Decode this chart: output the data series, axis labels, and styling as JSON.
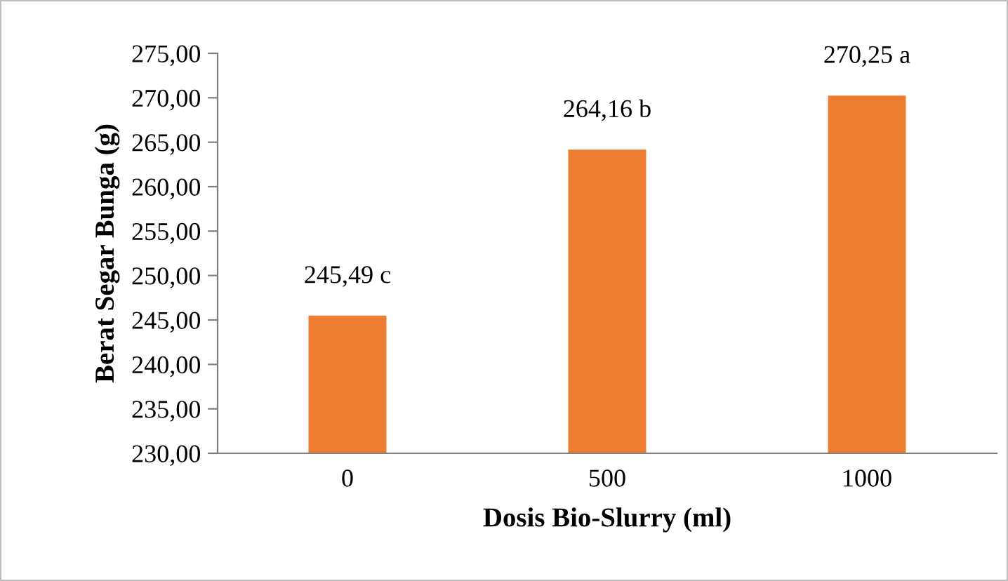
{
  "chart_data": {
    "type": "bar",
    "xlabel": "Dosis Bio-Slurry (ml)",
    "ylabel": "Berat Segar Bunga (g)",
    "categories": [
      "0",
      "500",
      "1000"
    ],
    "values": [
      245.49,
      264.16,
      270.25
    ],
    "value_labels": [
      "245,49 c",
      "264,16 b",
      "270,25 a"
    ],
    "color": "#ed7d31",
    "ylim": [
      230,
      275
    ],
    "yticks": [
      {
        "value": 230,
        "label": "230,00"
      },
      {
        "value": 235,
        "label": "235,00"
      },
      {
        "value": 240,
        "label": "240,00"
      },
      {
        "value": 245,
        "label": "245,00"
      },
      {
        "value": 250,
        "label": "250,00"
      },
      {
        "value": 255,
        "label": "255,00"
      },
      {
        "value": 260,
        "label": "260,00"
      },
      {
        "value": 265,
        "label": "265,00"
      },
      {
        "value": 270,
        "label": "270,00"
      },
      {
        "value": 275,
        "label": "275,00"
      }
    ],
    "grid": false,
    "legend": false
  }
}
